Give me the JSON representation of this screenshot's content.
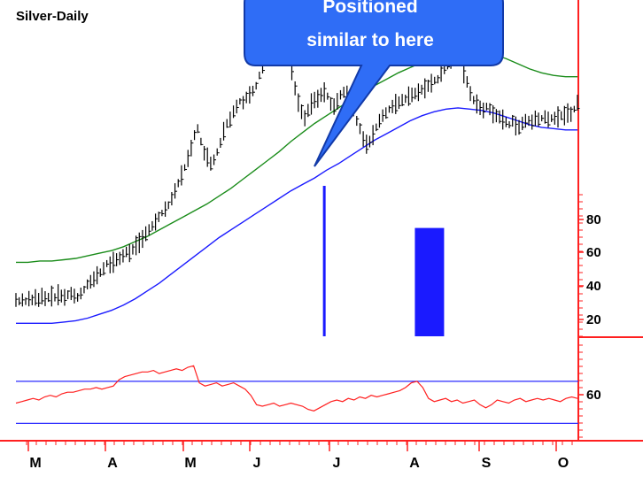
{
  "chart_data": {
    "type": "line",
    "title": "Silver-Daily",
    "x_tick_labels": [
      "M",
      "A",
      "M",
      "J",
      "J",
      "A",
      "S",
      "O"
    ],
    "price_scale_ticks": [
      80,
      60,
      40,
      20
    ],
    "price_ylim": [
      0,
      100
    ],
    "oscillator_ticks": [
      60
    ],
    "oscillator_ylim": [
      30,
      80
    ],
    "oscillator_bands": [
      67,
      40
    ],
    "annotation": {
      "text_line1": "Positioned",
      "text_line2": "similar to here"
    },
    "series": [
      {
        "kind": "ohlc",
        "values": [
          28,
          27,
          28,
          27,
          29,
          28,
          30,
          28,
          31,
          29,
          30,
          31,
          30,
          32,
          31,
          30,
          32,
          33,
          31,
          30,
          33,
          36,
          40,
          42,
          44,
          47,
          49,
          52,
          56,
          55,
          57,
          59,
          60,
          62,
          65,
          64,
          67,
          70,
          72,
          75,
          79,
          82,
          85,
          88,
          92,
          95,
          98,
          101,
          106,
          112,
          118,
          124,
          130,
          137,
          145,
          155,
          160,
          150,
          141,
          138,
          133,
          136,
          142,
          149,
          158,
          164,
          167,
          173,
          177,
          181,
          180,
          184,
          186,
          189,
          193,
          201,
          206,
          212,
          219,
          226,
          233,
          236,
          231,
          222,
          214,
          205,
          191,
          180,
          173,
          168,
          174,
          179,
          182,
          183,
          186,
          188,
          185,
          179,
          177,
          181,
          186,
          188,
          185,
          180,
          173,
          166,
          160,
          152,
          148,
          150,
          155,
          161,
          166,
          170,
          172,
          175,
          177,
          179,
          180,
          182,
          183,
          185,
          186,
          187,
          188,
          190,
          191,
          193,
          195,
          197,
          198,
          202,
          206,
          210,
          214,
          219,
          222,
          215,
          203,
          196,
          187,
          182,
          179,
          176,
          174,
          177,
          175,
          171,
          170,
          169,
          167,
          165,
          163,
          166,
          162,
          161,
          164,
          166,
          166,
          165,
          168,
          167,
          168,
          169,
          167,
          168,
          168,
          169,
          170,
          170,
          172,
          171,
          175,
          180
        ]
      },
      {
        "kind": "oscillator",
        "values": [
          53,
          54,
          55,
          56,
          55,
          57,
          58,
          57,
          59,
          60,
          60,
          61,
          62,
          62,
          63,
          62,
          63,
          64,
          68,
          70,
          71,
          72,
          73,
          73,
          74,
          72,
          73,
          74,
          75,
          74,
          76,
          77,
          66,
          64,
          65,
          66,
          64,
          65,
          66,
          64,
          62,
          58,
          52,
          51,
          52,
          53,
          51,
          52,
          53,
          52,
          51,
          49,
          48,
          50,
          52,
          54,
          55,
          54,
          56,
          55,
          57,
          56,
          58,
          57,
          58,
          59,
          60,
          61,
          63,
          66,
          67,
          63,
          56,
          54,
          55,
          56,
          54,
          55,
          53,
          54,
          55,
          52,
          50,
          52,
          55,
          54,
          53,
          55,
          56,
          54,
          55,
          56,
          55,
          56,
          55,
          54,
          56,
          57,
          56
        ]
      }
    ],
    "bands": {
      "green_upper": [
        57,
        57,
        58,
        58,
        59,
        60,
        62,
        64,
        66,
        69,
        73,
        77,
        82,
        87,
        92,
        97,
        102,
        108,
        114,
        121,
        128,
        135,
        142,
        150,
        157,
        164,
        170,
        176,
        182,
        188,
        193,
        198,
        203,
        207,
        211,
        214,
        217,
        219,
        220,
        219,
        217,
        214,
        210,
        206,
        203,
        201,
        200,
        200
      ],
      "blue_lower": [
        10,
        10,
        10,
        10,
        11,
        12,
        14,
        17,
        20,
        24,
        29,
        35,
        41,
        48,
        55,
        62,
        69,
        76,
        82,
        88,
        94,
        100,
        106,
        112,
        117,
        122,
        128,
        133,
        139,
        145,
        151,
        156,
        161,
        166,
        170,
        173,
        175,
        176,
        175,
        174,
        172,
        169,
        166,
        163,
        161,
        160,
        159,
        159
      ]
    },
    "volume_bars": [
      {
        "at_index": 95,
        "height": 1.0,
        "kind": "single"
      },
      {
        "at_index": 124,
        "height": 0.72,
        "kind": "cluster",
        "width_bars": 9
      }
    ],
    "colors": {
      "price": "#000000",
      "green_band": "#1a8c1a",
      "blue_band": "#1a1aff",
      "oscillator": "#ff2020",
      "axis": "#ff2020",
      "grid_band": "#2a2aff",
      "callout_fill": "#2f6df6",
      "callout_text": "#ffffff"
    }
  }
}
